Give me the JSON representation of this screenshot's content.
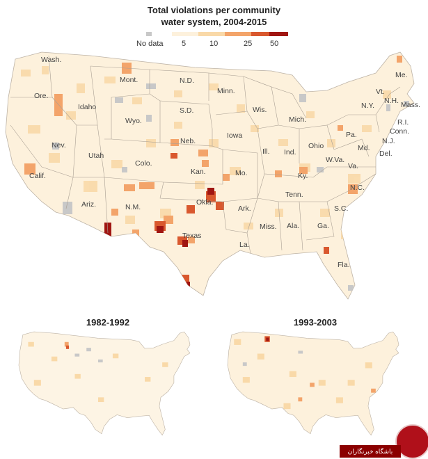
{
  "title_line1": "Total violations per community",
  "title_line2": "water system, 2004-2015",
  "legend": {
    "no_data_label": "No data",
    "ticks": [
      "5",
      "10",
      "25",
      "50"
    ],
    "no_data_color": "#c8c8c8",
    "scale_colors": [
      "#fdf1dc",
      "#f9d9a8",
      "#f3a46a",
      "#d9582e",
      "#a01612"
    ]
  },
  "main_map": {
    "state_labels": [
      {
        "id": "wash",
        "text": "Wash."
      },
      {
        "id": "ore",
        "text": "Ore."
      },
      {
        "id": "idaho",
        "text": "Idaho"
      },
      {
        "id": "mont",
        "text": "Mont."
      },
      {
        "id": "wyo",
        "text": "Wyo."
      },
      {
        "id": "nev",
        "text": "Nev."
      },
      {
        "id": "utah",
        "text": "Utah"
      },
      {
        "id": "calif",
        "text": "Calif."
      },
      {
        "id": "ariz",
        "text": "Ariz."
      },
      {
        "id": "colo",
        "text": "Colo."
      },
      {
        "id": "nm",
        "text": "N.M."
      },
      {
        "id": "nd",
        "text": "N.D."
      },
      {
        "id": "sd",
        "text": "S.D."
      },
      {
        "id": "neb",
        "text": "Neb."
      },
      {
        "id": "kan",
        "text": "Kan."
      },
      {
        "id": "okla",
        "text": "Okla."
      },
      {
        "id": "texas",
        "text": "Texas"
      },
      {
        "id": "minn",
        "text": "Minn."
      },
      {
        "id": "iowa",
        "text": "Iowa"
      },
      {
        "id": "mo",
        "text": "Mo."
      },
      {
        "id": "ark",
        "text": "Ark."
      },
      {
        "id": "la",
        "text": "La."
      },
      {
        "id": "wis",
        "text": "Wis."
      },
      {
        "id": "ill",
        "text": "Ill."
      },
      {
        "id": "mich",
        "text": "Mich."
      },
      {
        "id": "ind",
        "text": "Ind."
      },
      {
        "id": "ohio",
        "text": "Ohio"
      },
      {
        "id": "ky",
        "text": "Ky."
      },
      {
        "id": "tenn",
        "text": "Tenn."
      },
      {
        "id": "miss",
        "text": "Miss."
      },
      {
        "id": "ala",
        "text": "Ala."
      },
      {
        "id": "ga",
        "text": "Ga."
      },
      {
        "id": "fla",
        "text": "Fla."
      },
      {
        "id": "sc",
        "text": "S.C."
      },
      {
        "id": "nc",
        "text": "N.C."
      },
      {
        "id": "va",
        "text": "Va."
      },
      {
        "id": "wva",
        "text": "W.Va."
      },
      {
        "id": "pa",
        "text": "Pa."
      },
      {
        "id": "ny",
        "text": "N.Y."
      },
      {
        "id": "md",
        "text": "Md."
      },
      {
        "id": "del",
        "text": "Del."
      },
      {
        "id": "nj",
        "text": "N.J."
      },
      {
        "id": "conn",
        "text": "Conn."
      },
      {
        "id": "ri",
        "text": "R.I."
      },
      {
        "id": "mass",
        "text": "Mass."
      },
      {
        "id": "nh",
        "text": "N.H."
      },
      {
        "id": "vt",
        "text": "Vt."
      },
      {
        "id": "me",
        "text": "Me."
      }
    ]
  },
  "small_maps": [
    {
      "id": "map-1982",
      "title": "1982-1992"
    },
    {
      "id": "map-1993",
      "title": "1993-2003"
    }
  ],
  "watermark": {
    "text": "باشگاه خبرنگاران"
  }
}
